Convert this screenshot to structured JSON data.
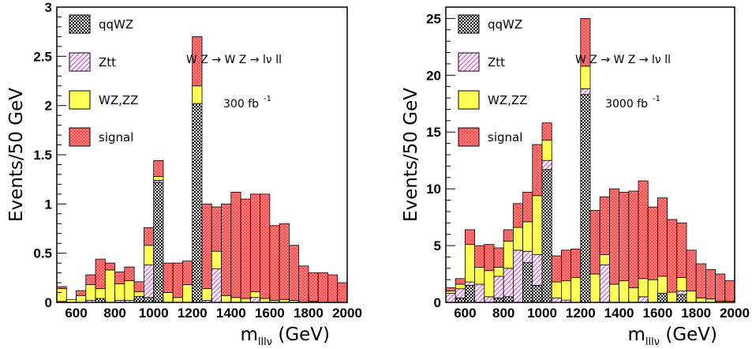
{
  "chart_data": [
    {
      "type": "bar",
      "stacked": true,
      "bin_width": 50,
      "x": [
        500,
        550,
        600,
        650,
        700,
        750,
        800,
        850,
        900,
        950,
        1000,
        1050,
        1100,
        1150,
        1200,
        1250,
        1300,
        1350,
        1400,
        1450,
        1500,
        1550,
        1600,
        1650,
        1700,
        1750,
        1800,
        1850,
        1900,
        1950
      ],
      "ylabel": "Events/50 GeV",
      "xlabel_main": "m",
      "xlabel_sub": "lllν",
      "xlabel_unit": " (GeV)",
      "xlim": [
        500,
        2000
      ],
      "ylim": [
        0,
        3
      ],
      "xticks": [
        600,
        800,
        1000,
        1200,
        1400,
        1600,
        1800,
        2000
      ],
      "yticks": [
        0,
        0.5,
        1,
        1.5,
        2,
        2.5,
        3
      ],
      "ytick_labels": [
        "0",
        "0.5",
        "1",
        "1.5",
        "2",
        "2.5",
        "3"
      ],
      "series": [
        {
          "name": "qqWZ",
          "values": [
            0,
            0,
            0,
            0,
            0.04,
            0,
            0,
            0,
            0.06,
            0.05,
            1.22,
            0,
            0,
            0,
            2.02,
            0,
            0,
            0,
            0,
            0,
            0,
            0,
            0,
            0,
            0,
            0,
            0,
            0,
            0,
            0
          ]
        },
        {
          "name": "Ztt",
          "values": [
            0.01,
            0,
            0,
            0.02,
            0,
            0,
            0.02,
            0.02,
            0,
            0.33,
            0.02,
            0,
            0,
            0,
            0,
            0.02,
            0.34,
            0,
            0,
            0,
            0.05,
            0,
            0,
            0,
            0,
            0,
            0,
            0,
            0,
            0
          ]
        },
        {
          "name": "WZ,ZZ",
          "values": [
            0.13,
            0.03,
            0.07,
            0.16,
            0.1,
            0.33,
            0.17,
            0.2,
            0.05,
            0.2,
            0.04,
            0.1,
            0.05,
            0.18,
            0.18,
            0.12,
            0.18,
            0.07,
            0.05,
            0.04,
            0.06,
            0.04,
            0.02,
            0.03,
            0.02,
            0,
            0.01,
            0,
            0,
            0
          ]
        },
        {
          "name": "signal",
          "values": [
            0.02,
            0,
            0.05,
            0.1,
            0.3,
            0.07,
            0.12,
            0.14,
            0.1,
            0.18,
            0.16,
            0.3,
            0.35,
            0.24,
            0.5,
            0.86,
            0.45,
            0.93,
            1.07,
            1.01,
            0.99,
            1.06,
            0.76,
            0.77,
            0.56,
            0.37,
            0.29,
            0.3,
            0.28,
            0.2
          ]
        }
      ],
      "colors": {
        "qqWZ": "#3a3a3a",
        "Ztt": "#ee44ee",
        "WZ,ZZ": "#ffff55",
        "signal": "#ff6a6a"
      },
      "annotation": "W Z → W Z → lν ll",
      "luminosity": "300 fb",
      "luminosity_sup": "-1"
    },
    {
      "type": "bar",
      "stacked": true,
      "bin_width": 50,
      "x": [
        500,
        550,
        600,
        650,
        700,
        750,
        800,
        850,
        900,
        950,
        1000,
        1050,
        1100,
        1150,
        1200,
        1250,
        1300,
        1350,
        1400,
        1450,
        1500,
        1550,
        1600,
        1650,
        1700,
        1750,
        1800,
        1850,
        1900,
        1950
      ],
      "ylabel": "Events/50 GeV",
      "xlabel_main": "m",
      "xlabel_sub": "lllν",
      "xlabel_unit": " (GeV)",
      "xlim": [
        500,
        2000
      ],
      "ylim": [
        0,
        26
      ],
      "xticks": [
        600,
        800,
        1000,
        1200,
        1400,
        1600,
        1800,
        2000
      ],
      "yticks": [
        0,
        5,
        10,
        15,
        20,
        25
      ],
      "ytick_labels": [
        "0",
        "5",
        "10",
        "15",
        "20",
        "25"
      ],
      "series": [
        {
          "name": "qqWZ",
          "values": [
            0,
            0.4,
            1.5,
            0,
            0,
            0.4,
            0.5,
            0,
            3.5,
            1.5,
            11.7,
            0,
            0,
            0,
            18.3,
            0,
            0,
            0,
            0,
            0,
            0,
            0,
            0.8,
            0,
            0.7,
            0,
            0,
            0,
            0,
            0
          ]
        },
        {
          "name": "Ztt",
          "values": [
            0.8,
            0.8,
            0.3,
            1.6,
            0.5,
            1.9,
            2.5,
            4.6,
            1.0,
            2.7,
            0.8,
            0.4,
            0.2,
            0,
            0.5,
            0,
            3.3,
            0,
            0,
            0,
            0.5,
            0,
            0,
            0,
            0.3,
            0,
            0,
            0,
            0,
            0
          ]
        },
        {
          "name": "WZ,ZZ",
          "values": [
            0.2,
            0.4,
            3.3,
            1.5,
            2.3,
            0.8,
            2.4,
            2.0,
            2.6,
            5.2,
            1.8,
            1.4,
            1.7,
            2.2,
            2.0,
            2.5,
            0.9,
            1.6,
            1.9,
            1.3,
            1.6,
            2.0,
            1.5,
            0.9,
            1.2,
            1.0,
            0.4,
            0.3,
            0.1,
            0.1
          ]
        },
        {
          "name": "signal",
          "values": [
            0.3,
            0.5,
            1.3,
            1.9,
            2.3,
            1.7,
            1.0,
            2.1,
            2.6,
            4.5,
            1.5,
            2.3,
            2.7,
            2.5,
            4.2,
            5.6,
            5.1,
            8.4,
            7.8,
            8.5,
            8.6,
            6.4,
            6.9,
            6.4,
            4.8,
            3.6,
            3.0,
            2.6,
            2.4,
            1.8
          ]
        }
      ],
      "colors": {
        "qqWZ": "#3a3a3a",
        "Ztt": "#ee44ee",
        "WZ,ZZ": "#ffff55",
        "signal": "#ff6a6a"
      },
      "annotation": "W Z → W Z → lν ll",
      "luminosity": "3000 fb",
      "luminosity_sup": "-1"
    }
  ]
}
